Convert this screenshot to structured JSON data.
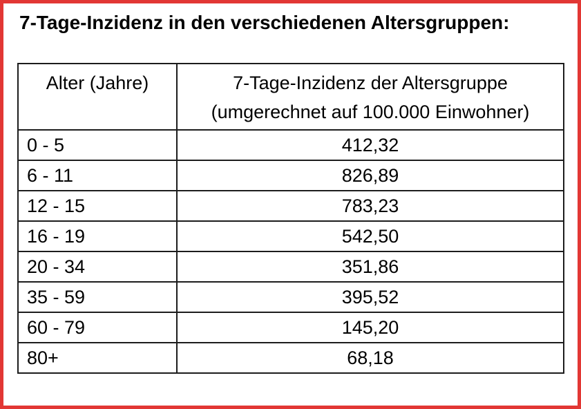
{
  "page": {
    "title": "7-Tage-Inzidenz in den verschiedenen Altersgruppen:",
    "frame_color": "#e23734"
  },
  "table": {
    "header": {
      "col1": "Alter (Jahre)",
      "col2_line1": "7-Tage-Inzidenz der Altersgruppe",
      "col2_line2": "(umgerechnet auf 100.000 Einwohner)"
    },
    "rows": [
      {
        "age": "0 - 5",
        "incidence": "412,32"
      },
      {
        "age": "6 - 11",
        "incidence": "826,89"
      },
      {
        "age": "12 - 15",
        "incidence": "783,23"
      },
      {
        "age": "16 - 19",
        "incidence": "542,50"
      },
      {
        "age": "20 - 34",
        "incidence": "351,86"
      },
      {
        "age": "35 - 59",
        "incidence": "395,52"
      },
      {
        "age": "60 - 79",
        "incidence": "145,20"
      },
      {
        "age": "80+",
        "incidence": "68,18"
      }
    ]
  },
  "chart_data": {
    "type": "table",
    "title": "7-Tage-Inzidenz in den verschiedenen Altersgruppen",
    "categories": [
      "0 - 5",
      "6 - 11",
      "12 - 15",
      "16 - 19",
      "20 - 34",
      "35 - 59",
      "60 - 79",
      "80+"
    ],
    "values": [
      412.32,
      826.89,
      783.23,
      542.5,
      351.86,
      395.52,
      145.2,
      68.18
    ],
    "xlabel": "Alter (Jahre)",
    "ylabel": "7-Tage-Inzidenz der Altersgruppe (umgerechnet auf 100.000 Einwohner)"
  }
}
